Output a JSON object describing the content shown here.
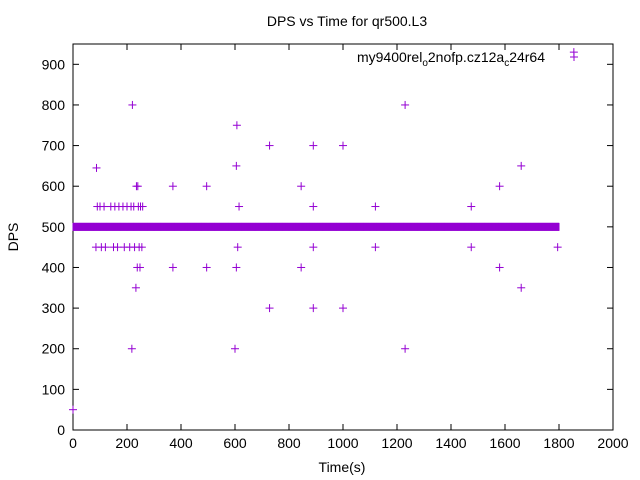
{
  "chart_data": {
    "type": "scatter",
    "title": "DPS vs Time for qr500.L3",
    "xlabel": "Time(s)",
    "ylabel": "DPS",
    "xlim": [
      0,
      2000
    ],
    "ylim": [
      0,
      950
    ],
    "xticks": [
      0,
      200,
      400,
      600,
      800,
      1000,
      1200,
      1400,
      1600,
      1800,
      2000
    ],
    "yticks": [
      0,
      100,
      200,
      300,
      400,
      500,
      600,
      700,
      800,
      900
    ],
    "grid": false,
    "legend_position": "top-right",
    "legend": {
      "main": "my9400",
      "sub1": "rel",
      "sub1_suffix": "o",
      "mid": "2nofp.cz12",
      "sub2": "a",
      "sub2_suffix": "c",
      "tail": "24r64"
    },
    "marker_color": "#9400d3",
    "series": [
      {
        "name": "my9400_rel_o2nofp.cz12a_c24r64",
        "baseline": {
          "y": 500,
          "x_start": 0,
          "x_end": 1800
        },
        "points": [
          [
            0,
            50
          ],
          [
            87,
            645
          ],
          [
            85,
            450
          ],
          [
            90,
            550
          ],
          [
            100,
            550
          ],
          [
            105,
            450
          ],
          [
            115,
            550
          ],
          [
            120,
            450
          ],
          [
            140,
            550
          ],
          [
            150,
            450
          ],
          [
            155,
            550
          ],
          [
            165,
            450
          ],
          [
            170,
            550
          ],
          [
            185,
            550
          ],
          [
            190,
            450
          ],
          [
            200,
            550
          ],
          [
            210,
            450
          ],
          [
            215,
            550
          ],
          [
            218,
            200
          ],
          [
            220,
            800
          ],
          [
            225,
            550
          ],
          [
            228,
            450
          ],
          [
            233,
            350
          ],
          [
            235,
            600
          ],
          [
            238,
            400
          ],
          [
            240,
            600
          ],
          [
            242,
            550
          ],
          [
            245,
            450
          ],
          [
            248,
            400
          ],
          [
            250,
            550
          ],
          [
            255,
            450
          ],
          [
            258,
            550
          ],
          [
            370,
            600
          ],
          [
            370,
            400
          ],
          [
            495,
            600
          ],
          [
            495,
            400
          ],
          [
            600,
            200
          ],
          [
            605,
            400
          ],
          [
            605,
            650
          ],
          [
            607,
            750
          ],
          [
            610,
            450
          ],
          [
            615,
            550
          ],
          [
            728,
            700
          ],
          [
            728,
            300
          ],
          [
            845,
            600
          ],
          [
            845,
            400
          ],
          [
            890,
            700
          ],
          [
            890,
            550
          ],
          [
            890,
            450
          ],
          [
            890,
            300
          ],
          [
            1000,
            700
          ],
          [
            1000,
            300
          ],
          [
            1120,
            550
          ],
          [
            1120,
            450
          ],
          [
            1230,
            800
          ],
          [
            1230,
            200
          ],
          [
            1475,
            550
          ],
          [
            1475,
            450
          ],
          [
            1580,
            600
          ],
          [
            1580,
            400
          ],
          [
            1660,
            650
          ],
          [
            1660,
            350
          ],
          [
            1795,
            450
          ],
          [
            1855,
            930
          ]
        ]
      }
    ]
  }
}
